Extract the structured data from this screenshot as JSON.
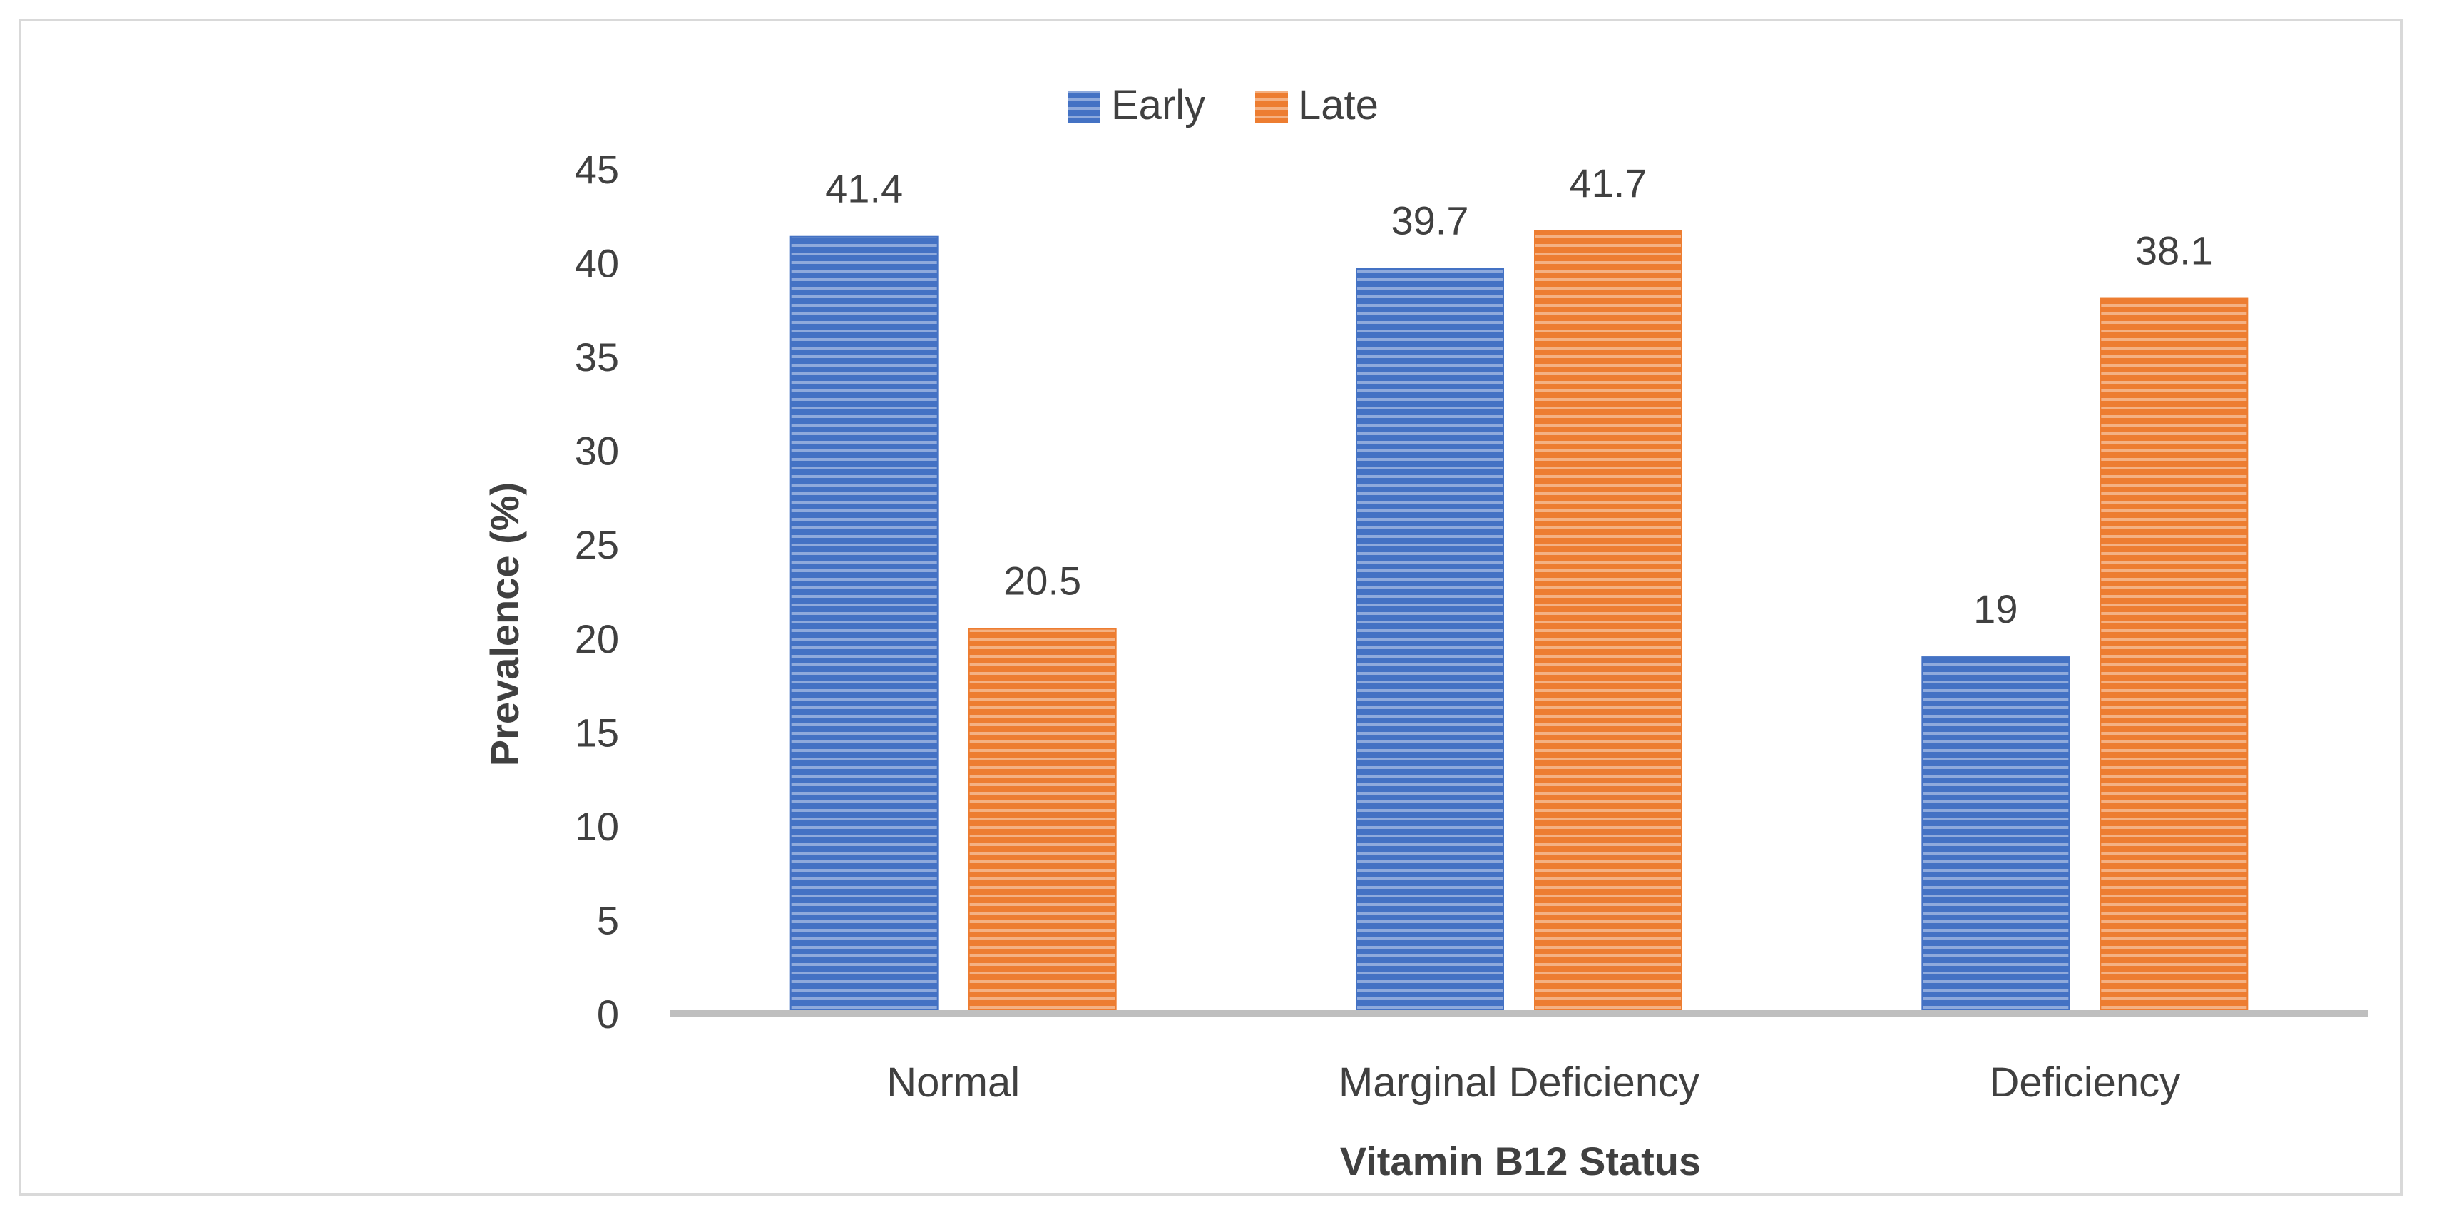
{
  "colors": {
    "early": "#4472c4",
    "late": "#ed7d31",
    "axis": "#bfbfbf",
    "text": "#404040"
  },
  "chart_data": {
    "type": "bar",
    "title": "",
    "categories": [
      "Normal",
      "Marginal Deficiency",
      "Deficiency"
    ],
    "series": [
      {
        "name": "Early",
        "values": [
          41.4,
          39.7,
          19
        ]
      },
      {
        "name": "Late",
        "values": [
          20.5,
          41.7,
          38.1
        ]
      }
    ],
    "data_labels": [
      [
        "41.4",
        "39.7",
        "19"
      ],
      [
        "20.5",
        "41.7",
        "38.1"
      ]
    ],
    "xlabel": "Vitamin B12 Status",
    "ylabel": "Prevalence  (%)",
    "ylim": [
      0,
      45
    ],
    "yticks": [
      0,
      5,
      10,
      15,
      20,
      25,
      30,
      35,
      40,
      45
    ],
    "ytick_labels": [
      "0",
      "5",
      "10",
      "15",
      "20",
      "25",
      "30",
      "35",
      "40",
      "45"
    ],
    "legend_position": "top-center",
    "grid": false
  }
}
